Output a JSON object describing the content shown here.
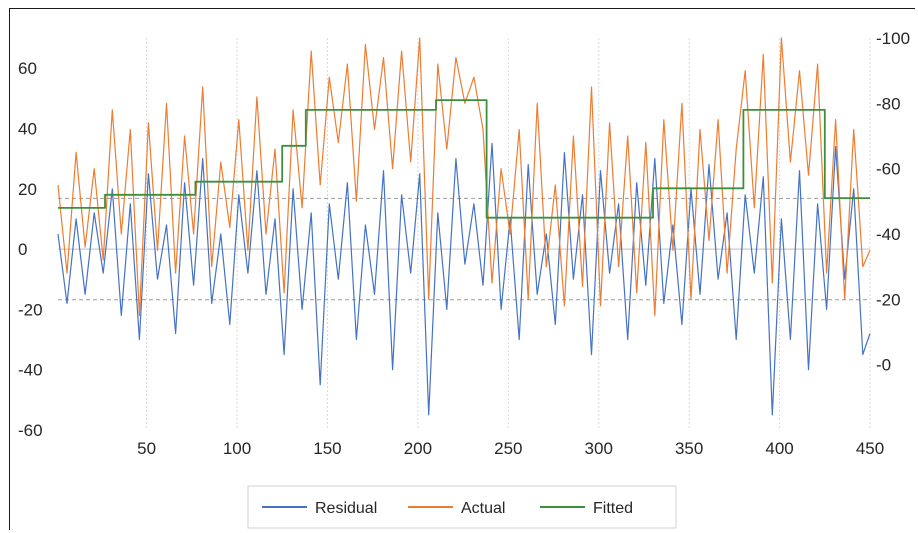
{
  "chart_data": {
    "type": "line",
    "title": "",
    "xlabel": "",
    "ylabel": "",
    "y2label": "",
    "x_ticks": [
      50,
      100,
      150,
      200,
      250,
      300,
      350,
      400,
      450
    ],
    "xlim": [
      1,
      450
    ],
    "left_axis": {
      "ticks": [
        60,
        40,
        20,
        0,
        -20,
        -40,
        -60
      ],
      "range": [
        -60,
        60
      ],
      "visible_range": [
        -60,
        70
      ],
      "reference_lines": [
        16.8,
        0,
        -16.8
      ]
    },
    "right_axis": {
      "ticks": [
        100,
        80,
        60,
        40,
        20,
        0
      ],
      "range": [
        0,
        100
      ],
      "visible_range": [
        -20,
        100
      ]
    },
    "grid": "vertical",
    "legend": {
      "position": "bottom"
    },
    "colors": {
      "residual": "#4472c4",
      "actual": "#ed7d31",
      "fitted": "#3c8f3c",
      "reference": "#9b9b9b",
      "grid": "#d9d9d9"
    },
    "series": [
      {
        "name": "Residual",
        "axis": "left",
        "x": [
          1,
          6,
          11,
          16,
          21,
          26,
          31,
          36,
          41,
          46,
          51,
          56,
          61,
          66,
          71,
          76,
          81,
          86,
          91,
          96,
          101,
          106,
          111,
          116,
          121,
          126,
          131,
          136,
          141,
          146,
          151,
          156,
          161,
          166,
          171,
          176,
          181,
          186,
          191,
          196,
          201,
          206,
          211,
          216,
          221,
          226,
          231,
          236,
          241,
          246,
          251,
          256,
          261,
          266,
          271,
          276,
          281,
          286,
          291,
          296,
          301,
          306,
          311,
          316,
          321,
          326,
          331,
          336,
          341,
          346,
          351,
          356,
          361,
          366,
          371,
          376,
          381,
          386,
          391,
          396,
          401,
          406,
          411,
          416,
          421,
          426,
          431,
          436,
          441,
          446,
          450
        ],
        "y": [
          5,
          -18,
          10,
          -15,
          12,
          -8,
          20,
          -22,
          15,
          -30,
          25,
          -10,
          8,
          -28,
          22,
          -12,
          30,
          -18,
          5,
          -25,
          18,
          -8,
          26,
          -15,
          10,
          -35,
          20,
          -20,
          12,
          -45,
          15,
          -10,
          22,
          -30,
          8,
          -15,
          26,
          -40,
          18,
          -8,
          25,
          -55,
          12,
          -20,
          30,
          -5,
          15,
          -12,
          35,
          -20,
          10,
          -30,
          28,
          -15,
          5,
          -25,
          32,
          -10,
          18,
          -35,
          26,
          -8,
          15,
          -30,
          22,
          -12,
          30,
          -18,
          8,
          -25,
          20,
          -15,
          28,
          -10,
          12,
          -30,
          18,
          -8,
          24,
          -55,
          10,
          -30,
          26,
          -40,
          15,
          -20,
          34,
          -10,
          20,
          -35,
          -28
        ]
      },
      {
        "name": "Actual",
        "axis": "right",
        "x": [
          1,
          6,
          11,
          16,
          21,
          26,
          31,
          36,
          41,
          46,
          51,
          56,
          61,
          66,
          71,
          76,
          81,
          86,
          91,
          96,
          101,
          106,
          111,
          116,
          121,
          126,
          131,
          136,
          141,
          146,
          151,
          156,
          161,
          166,
          171,
          176,
          181,
          186,
          191,
          196,
          201,
          206,
          211,
          216,
          221,
          226,
          231,
          236,
          241,
          246,
          251,
          256,
          261,
          266,
          271,
          276,
          281,
          286,
          291,
          296,
          301,
          306,
          311,
          316,
          321,
          326,
          331,
          336,
          341,
          346,
          351,
          356,
          361,
          366,
          371,
          376,
          381,
          386,
          391,
          396,
          401,
          406,
          411,
          416,
          421,
          426,
          431,
          436,
          441,
          446,
          450
        ],
        "y": [
          55,
          28,
          65,
          36,
          60,
          32,
          78,
          40,
          72,
          15,
          74,
          35,
          80,
          28,
          70,
          40,
          85,
          30,
          62,
          42,
          75,
          35,
          82,
          40,
          66,
          22,
          78,
          48,
          96,
          55,
          88,
          68,
          92,
          50,
          98,
          72,
          94,
          60,
          96,
          62,
          100,
          20,
          92,
          66,
          94,
          80,
          88,
          72,
          25,
          60,
          40,
          72,
          20,
          80,
          30,
          55,
          18,
          70,
          24,
          85,
          18,
          74,
          30,
          70,
          22,
          68,
          15,
          75,
          35,
          80,
          20,
          72,
          38,
          75,
          28,
          66,
          90,
          48,
          95,
          25,
          100,
          62,
          90,
          58,
          92,
          28,
          75,
          20,
          72,
          30,
          35
        ]
      },
      {
        "name": "Fitted",
        "axis": "right",
        "step": true,
        "x": [
          1,
          27,
          27,
          77,
          77,
          125,
          125,
          138,
          138,
          210,
          210,
          238,
          238,
          330,
          330,
          380,
          380,
          425,
          425,
          450
        ],
        "y": [
          48,
          48,
          52,
          52,
          56,
          56,
          67,
          67,
          78,
          78,
          81,
          81,
          45,
          45,
          54,
          54,
          78,
          78,
          51,
          51
        ]
      }
    ]
  }
}
